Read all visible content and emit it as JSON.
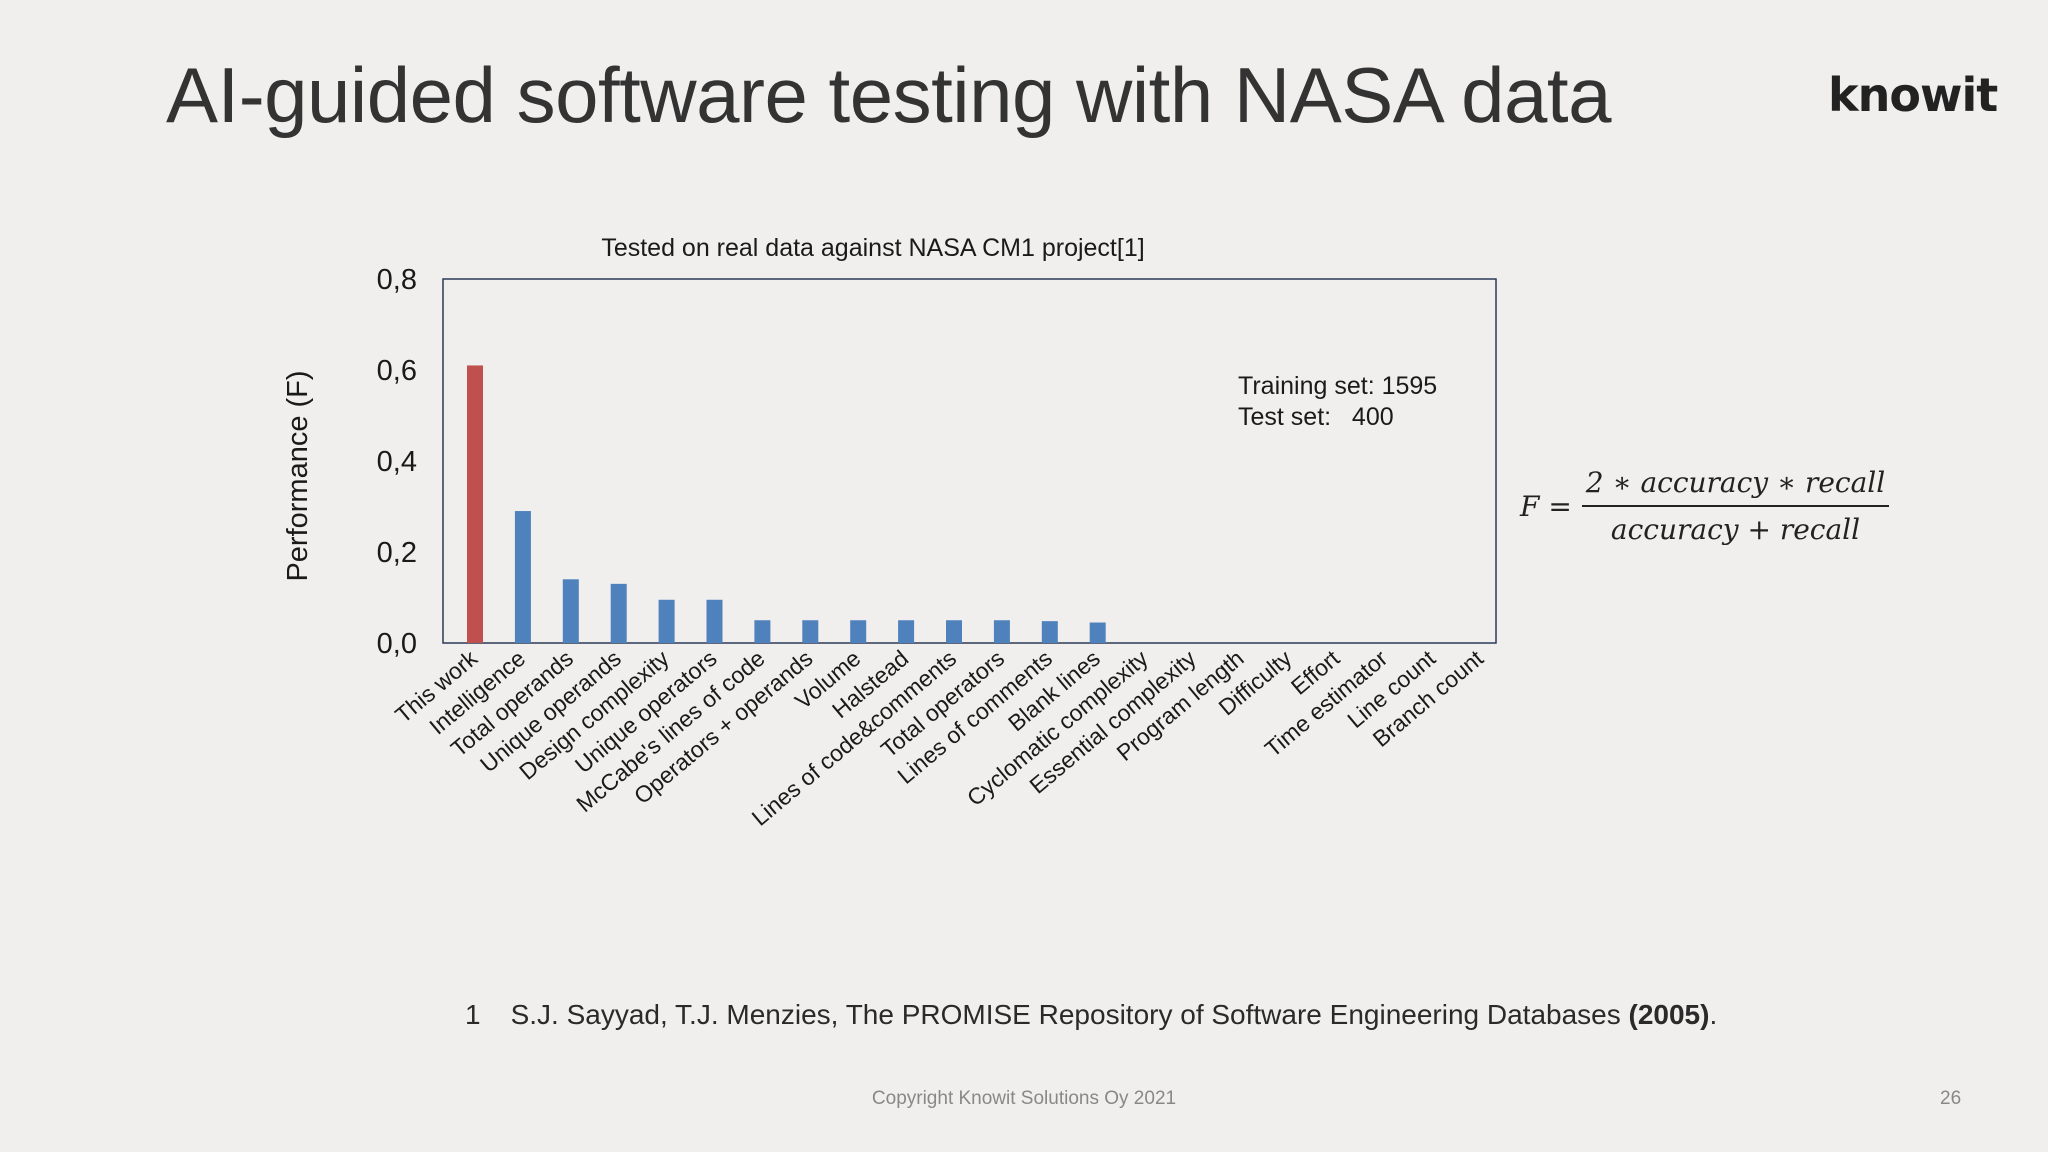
{
  "slide": {
    "title": "AI-guided software testing with NASA data",
    "logo": "knowit",
    "reference_number": "1",
    "reference_text": "S.J. Sayyad, T.J. Menzies, The PROMISE Repository of Software Engineering  Databases",
    "reference_year": "(2005)",
    "reference_end": ".",
    "footer": "Copyright Knowit Solutions Oy 2021",
    "page_number": "26"
  },
  "formula": {
    "lhs": "F =",
    "numerator": "2 ∗ accuracy ∗ recall",
    "denominator": "accuracy + recall"
  },
  "chart_data": {
    "type": "bar",
    "title": "Tested on real data against NASA CM1 project[1]",
    "xlabel": "",
    "ylabel": "Performance (F)",
    "ylim": [
      0,
      0.8
    ],
    "yticks": [
      "0,0",
      "0,2",
      "0,4",
      "0,6",
      "0,8"
    ],
    "grid": false,
    "legend": "none",
    "annotation_lines": [
      "Training set: 1595",
      "Test set:   400"
    ],
    "colors": {
      "highlight": "#c0504d",
      "default": "#4f81bd"
    },
    "categories": [
      "This work",
      "Intelligence",
      "Total operands",
      "Unique operands",
      "Design complexity",
      "Unique operators",
      "McCabe's lines of code",
      "Operators + operands",
      "Volume",
      "Halstead",
      "Lines of code&comments",
      "Total operators",
      "Lines of comments",
      "Blank lines",
      "Cyclomatic complexity",
      "Essential complexity",
      "Program length",
      "Difficulty",
      "Effort",
      "Time estimator",
      "Line count",
      "Branch count"
    ],
    "values": [
      0.61,
      0.29,
      0.14,
      0.13,
      0.095,
      0.095,
      0.05,
      0.05,
      0.05,
      0.05,
      0.05,
      0.05,
      0.048,
      0.045,
      0,
      0,
      0,
      0,
      0,
      0,
      0,
      0
    ],
    "highlight_index": 0
  }
}
